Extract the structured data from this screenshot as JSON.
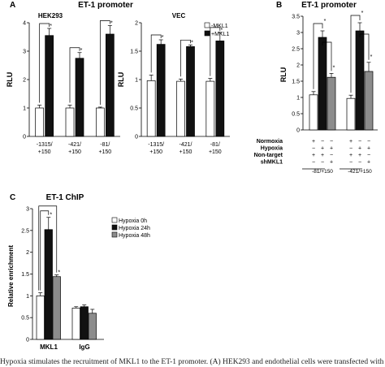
{
  "caption": "Hypoxia stimulates the recruitment of MKL1 to the ET-1 promoter. (A) HEK293 and endothelial cells were transfected with",
  "colors": {
    "white_bar": "#ffffff",
    "black_bar": "#111111",
    "gray_bar": "#8c8c8c",
    "axis": "#000000"
  },
  "panels": [
    {
      "letter": "A",
      "title": "ET-1 promoter",
      "legend": [
        "-MKL1",
        "+MKL1"
      ],
      "legend_position": "top-right of VEC subchart",
      "charts": [
        {
          "subtitle": "HEK293",
          "ylabel": "RLU",
          "ylim": [
            0,
            4
          ],
          "yticks": [
            "0",
            "1",
            "2",
            "3",
            "4"
          ],
          "categories": [
            [
              "-1315/",
              "+150"
            ],
            [
              "-421/",
              "+150"
            ],
            [
              "-81/",
              "+150"
            ]
          ],
          "series": [
            {
              "name": "-MKL1",
              "values": [
                1.0,
                1.0,
                1.0
              ],
              "errors": [
                0.1,
                0.1,
                0.03
              ]
            },
            {
              "name": "+MKL1",
              "values": [
                3.55,
                2.75,
                3.6
              ],
              "errors": [
                0.25,
                0.2,
                0.3
              ]
            }
          ],
          "significance": [
            "*",
            "*",
            "*"
          ]
        },
        {
          "subtitle": "VEC",
          "ylabel": "RLU",
          "ylim": [
            0,
            2
          ],
          "yticks": [
            "0",
            "0.5",
            "1",
            "1.5",
            "2"
          ],
          "categories": [
            [
              "-1315/",
              "+150"
            ],
            [
              "-421/",
              "+150"
            ],
            [
              "-81/",
              "+150"
            ]
          ],
          "series": [
            {
              "name": "-MKL1",
              "values": [
                0.98,
                0.97,
                0.97
              ],
              "errors": [
                0.1,
                0.04,
                0.05
              ]
            },
            {
              "name": "+MKL1",
              "values": [
                1.62,
                1.58,
                1.68
              ],
              "errors": [
                0.08,
                0.03,
                0.15
              ]
            }
          ],
          "significance": [
            "*",
            "*",
            "*"
          ]
        }
      ]
    },
    {
      "letter": "B",
      "title": "ET-1 promoter",
      "ylabel": "RLU",
      "ylim": [
        0,
        3.5
      ],
      "yticks": [
        "0",
        "0.5",
        "1",
        "1.5",
        "2",
        "2.5",
        "3",
        "3.5"
      ],
      "categories": [
        "-81/+150",
        "-421/+150"
      ],
      "series": [
        {
          "name": "Normoxia + Non-target",
          "values": [
            1.08,
            0.97
          ],
          "errors": [
            0.1,
            0.1
          ]
        },
        {
          "name": "Hypoxia + Non-target",
          "values": [
            2.85,
            3.05
          ],
          "errors": [
            0.2,
            0.25
          ]
        },
        {
          "name": "Hypoxia + shMKL1",
          "values": [
            1.62,
            1.8
          ],
          "errors": [
            0.12,
            0.28
          ]
        }
      ],
      "significance": [
        "*",
        "*",
        "*",
        "*"
      ],
      "condition_rows": [
        {
          "label": "Normoxia",
          "signs": [
            "+",
            "−",
            "−",
            "+",
            "−",
            "−"
          ]
        },
        {
          "label": "Hypoxia",
          "signs": [
            "−",
            "+",
            "+",
            "−",
            "+",
            "+"
          ]
        },
        {
          "label": "Non-target",
          "signs": [
            "+",
            "+",
            "−",
            "+",
            "+",
            "−"
          ]
        },
        {
          "label": "shMKL1",
          "signs": [
            "−",
            "−",
            "+",
            "−",
            "−",
            "+"
          ]
        }
      ]
    },
    {
      "letter": "C",
      "title": "ET-1 ChIP",
      "ylabel": "Relative enrichment",
      "ylim": [
        0,
        3
      ],
      "yticks": [
        "0",
        "0.5",
        "1",
        "1.5",
        "2",
        "2.5",
        "3"
      ],
      "categories": [
        "MKL1",
        "IgG"
      ],
      "legend": [
        "Hypoxia 0h",
        "Hypoxia 24h",
        "Hypoxia 48h"
      ],
      "series": [
        {
          "name": "Hypoxia 0h",
          "values": [
            1.0,
            0.72
          ],
          "errors": [
            0.07,
            0.03
          ]
        },
        {
          "name": "Hypoxia 24h",
          "values": [
            2.52,
            0.75
          ],
          "errors": [
            0.28,
            0.04
          ]
        },
        {
          "name": "Hypoxia 48h",
          "values": [
            1.44,
            0.6
          ],
          "errors": [
            0.04,
            0.09
          ]
        }
      ],
      "significance": [
        "*",
        "*"
      ]
    }
  ]
}
